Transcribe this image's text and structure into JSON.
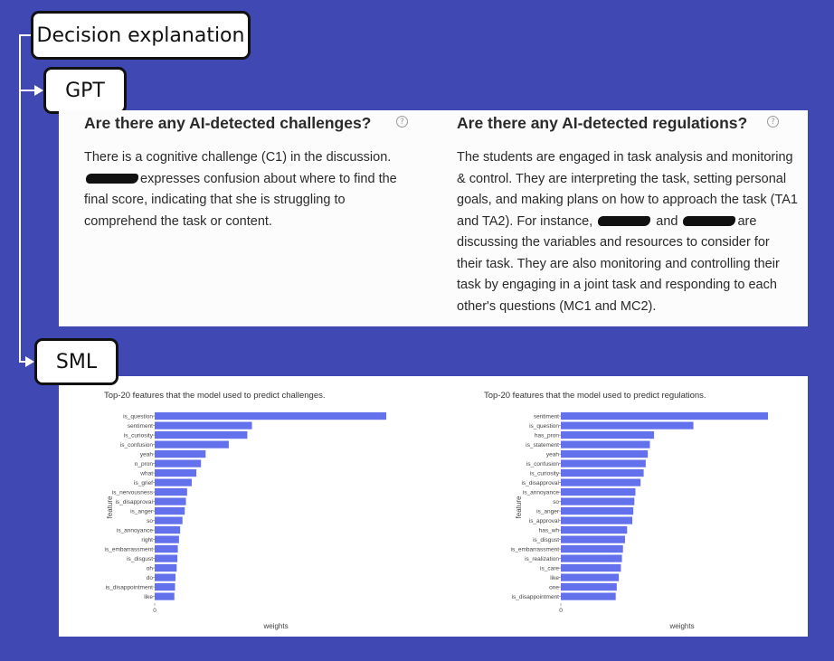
{
  "labels": {
    "decision": "Decision explanation",
    "gpt": "GPT",
    "sml": "SML"
  },
  "gpt": {
    "challenges": {
      "title": "Are there any AI-detected challenges?",
      "help_icon": "question-circle-icon",
      "line1": "There is a cognitive challenge (C1) in the discussion.",
      "line2_rest": "expresses confusion about where to find the",
      "line3": "final score, indicating that she is struggling to",
      "line4": "comprehend the task or content."
    },
    "regulations": {
      "title": "Are there any AI-detected regulations?",
      "help_icon": "question-circle-icon",
      "line1": "The students are engaged in task analysis and monitoring",
      "line2": "& control. They are interpreting the task, setting personal",
      "line3": "goals, and making plans on how to approach the task (TA1",
      "line4_a": "and TA2). For instance,",
      "line4_b": "and",
      "line4_c": "are",
      "line5": "discussing the variables and resources to consider for",
      "line6": "their task. They are also monitoring and controlling their",
      "line7": "task by engaging in a joint task and responding to each",
      "line8": "other's questions (MC1 and MC2)."
    }
  },
  "colors": {
    "bar": "#6371ed",
    "background": "#4049b3"
  },
  "chart_data": [
    {
      "type": "bar",
      "orientation": "horizontal",
      "title": "Top-20 features that the model used to predict challenges.",
      "xlabel": "weights",
      "ylabel": "feature",
      "x_tick_labels": [
        "0"
      ],
      "categories": [
        "is_question",
        "sentiment",
        "is_curiosity",
        "is_confusion",
        "yeah",
        "n_pron",
        "what",
        "is_grief",
        "is_nervousness",
        "is_disapproval",
        "is_anger",
        "so",
        "is_annoyance",
        "right",
        "is_embarrassment",
        "is_disgust",
        "oh",
        "do",
        "is_disappointment",
        "like"
      ],
      "values": [
        1.0,
        0.42,
        0.4,
        0.32,
        0.22,
        0.2,
        0.18,
        0.16,
        0.14,
        0.135,
        0.13,
        0.12,
        0.11,
        0.105,
        0.1,
        0.098,
        0.095,
        0.09,
        0.088,
        0.085
      ]
    },
    {
      "type": "bar",
      "orientation": "horizontal",
      "title": "Top-20 features that the model used to predict regulations.",
      "xlabel": "weights",
      "ylabel": "feature",
      "x_tick_labels": [
        "0"
      ],
      "categories": [
        "sentiment",
        "is_question",
        "has_pron",
        "is_statement",
        "yeah",
        "is_confusion",
        "is_curiosity",
        "is_disapproval",
        "is_annoyance",
        "so",
        "is_anger",
        "is_approval",
        "has_wh",
        "is_disgust",
        "is_embarrassment",
        "is_realization",
        "is_care",
        "like",
        "one",
        "is_disappointment"
      ],
      "values": [
        1.0,
        0.64,
        0.45,
        0.43,
        0.42,
        0.41,
        0.4,
        0.385,
        0.36,
        0.355,
        0.35,
        0.345,
        0.32,
        0.31,
        0.3,
        0.295,
        0.29,
        0.28,
        0.27,
        0.265
      ]
    }
  ]
}
